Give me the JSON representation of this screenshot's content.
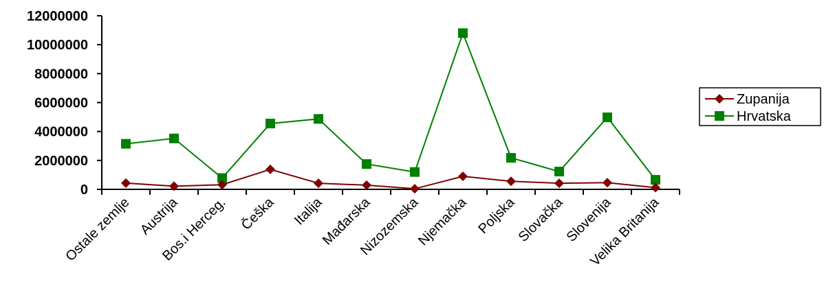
{
  "chart_data": {
    "type": "line",
    "categories": [
      "Ostale zemlje",
      "Austrija",
      "Bos.i Herceg.",
      "Češka",
      "Italija",
      "Mađarska",
      "Nizozemska",
      "Njemačka",
      "Poljska",
      "Slovačka",
      "Slovenija",
      "Velika Britanija"
    ],
    "series": [
      {
        "name": "Zupanija",
        "color": "#800000",
        "marker": "diamond",
        "values": [
          430000,
          220000,
          320000,
          1380000,
          420000,
          290000,
          40000,
          900000,
          560000,
          420000,
          460000,
          120000
        ]
      },
      {
        "name": "Hrvatska",
        "color": "#008000",
        "marker": "square",
        "values": [
          3150000,
          3520000,
          780000,
          4550000,
          4870000,
          1750000,
          1200000,
          10800000,
          2180000,
          1230000,
          4980000,
          660000
        ]
      }
    ],
    "yticks": [
      "0",
      "2000000",
      "4000000",
      "6000000",
      "8000000",
      "10000000",
      "12000000"
    ],
    "ylim": [
      0,
      12000000
    ],
    "title": "",
    "xlabel": "",
    "ylabel": "",
    "legend": "right",
    "grid": false
  }
}
